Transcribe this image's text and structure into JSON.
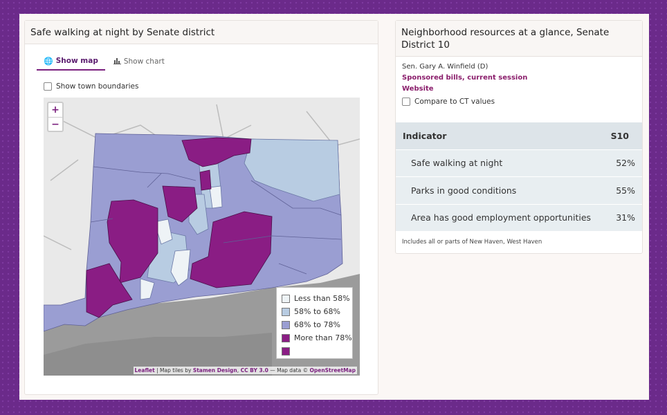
{
  "left_panel": {
    "title": "Safe walking at night by Senate district",
    "tabs": [
      {
        "label": "Show map",
        "icon": "globe-icon"
      },
      {
        "label": "Show chart",
        "icon": "bar-chart-icon"
      }
    ],
    "town_boundaries_label": "Show town boundaries",
    "zoom_in": "+",
    "zoom_out": "−",
    "legend": [
      {
        "label": "Less than 58%",
        "color": "#eef3f6"
      },
      {
        "label": "58% to 68%",
        "color": "#b8cce2"
      },
      {
        "label": "68% to 78%",
        "color": "#9a9ed2"
      },
      {
        "label": "More than 78%",
        "color": "#8a1d84"
      },
      {
        "label": "",
        "color": "#8a1d84"
      }
    ],
    "attribution": {
      "leaflet": "Leaflet",
      "tiles_text": " | Map tiles by ",
      "stamen": "Stamen Design",
      "sep": ", ",
      "license": "CC BY 3.0",
      "data_text": " — Map data © ",
      "osm": "OpenStreetMap"
    }
  },
  "right_panel": {
    "title": "Neighborhood resources at a glance, Senate District 10",
    "senator": "Sen. Gary A. Winfield (D)",
    "bills_link": "Sponsored bills, current session",
    "website_link": "Website",
    "compare_label": "Compare to CT values",
    "table": {
      "headers": [
        "Indicator",
        "S10"
      ],
      "rows": [
        {
          "indicator": "Safe walking at night",
          "value": "52%"
        },
        {
          "indicator": "Parks in good conditions",
          "value": "55%"
        },
        {
          "indicator": "Area has good employment opportunities",
          "value": "31%"
        }
      ]
    },
    "note": "Includes all or parts of New Haven, West Haven"
  }
}
